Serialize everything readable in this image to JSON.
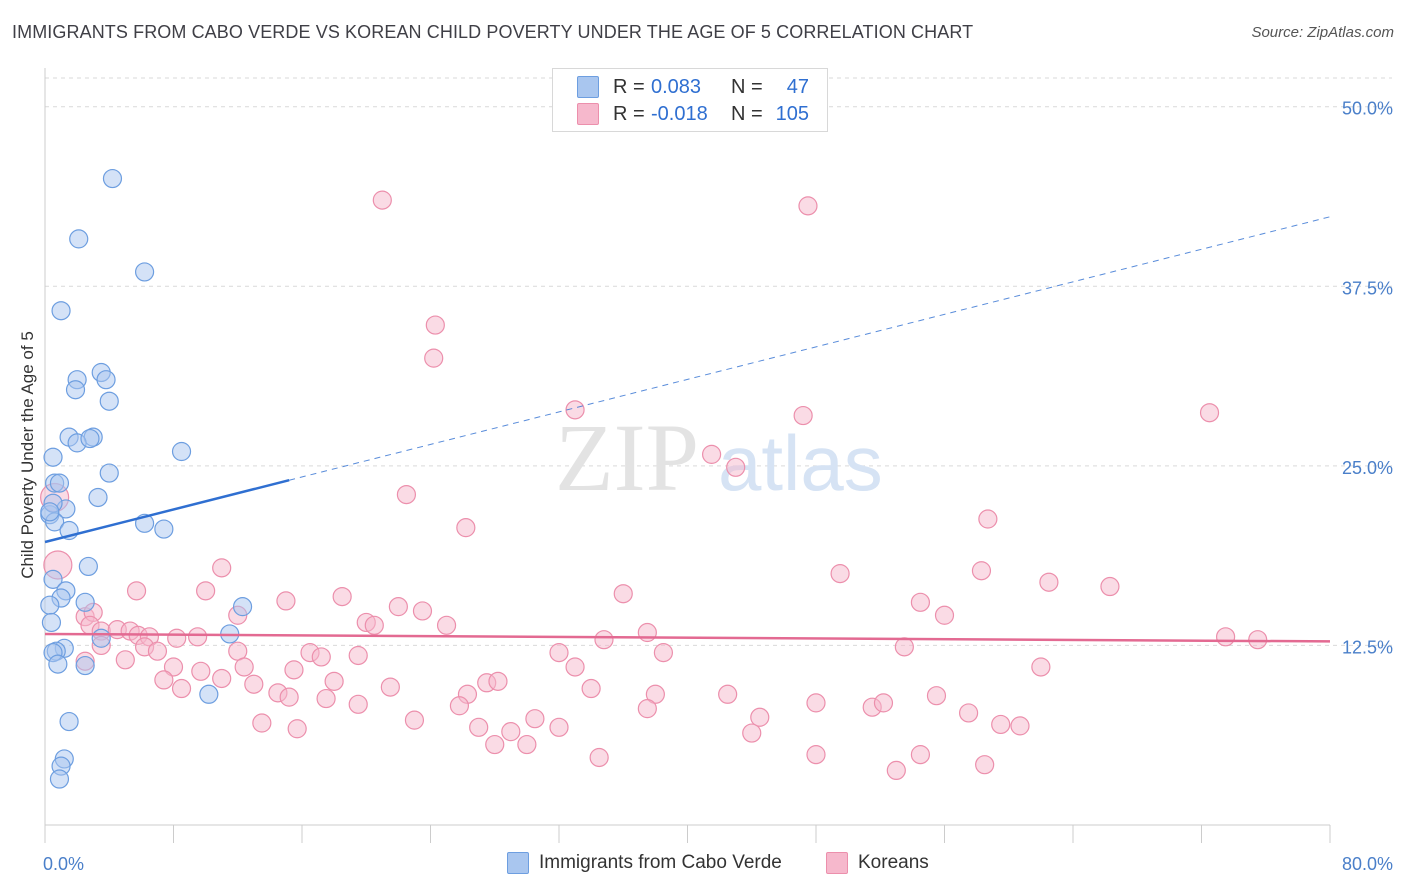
{
  "header": {
    "title": "IMMIGRANTS FROM CABO VERDE VS KOREAN CHILD POVERTY UNDER THE AGE OF 5 CORRELATION CHART",
    "source": "Source: ZipAtlas.com"
  },
  "watermark": {
    "zip": "ZIP",
    "atlas": "atlas"
  },
  "legend": {
    "blue": {
      "r_label": "R =",
      "r_value": "0.083",
      "n_label": "N =",
      "n_value": "47"
    },
    "pink": {
      "r_label": "R =",
      "r_value": "-0.018",
      "n_label": "N =",
      "n_value": "105"
    }
  },
  "colors": {
    "blue_fill": "#a9c6ef",
    "blue_stroke": "#6d9ee0",
    "blue_line": "#2f6fd1",
    "pink_fill": "#f6b8cc",
    "pink_stroke": "#ec8fac",
    "pink_line": "#e36a92",
    "tick_text": "#4a7fc9",
    "grid": "#d9d9d9"
  },
  "chart_data": {
    "type": "scatter",
    "title": "IMMIGRANTS FROM CABO VERDE VS KOREAN CHILD POVERTY UNDER THE AGE OF 5 CORRELATION CHART",
    "xlabel": "",
    "ylabel": "Child Poverty Under the Age of 5",
    "xlim": [
      0,
      80
    ],
    "ylim": [
      0,
      52
    ],
    "x_tick_labels": [
      {
        "value": 0,
        "label": "0.0%"
      },
      {
        "value": 80,
        "label": "80.0%"
      }
    ],
    "y_tick_labels": [
      {
        "value": 12.5,
        "label": "12.5%"
      },
      {
        "value": 25,
        "label": "25.0%"
      },
      {
        "value": 37.5,
        "label": "37.5%"
      },
      {
        "value": 50,
        "label": "50.0%"
      }
    ],
    "legend_position": "top-center",
    "series": [
      {
        "name": "Immigrants from Cabo Verde",
        "color": "#a9c6ef",
        "points": [
          [
            4.2,
            45.0
          ],
          [
            2.1,
            40.8
          ],
          [
            6.2,
            38.5
          ],
          [
            1.0,
            35.8
          ],
          [
            3.5,
            31.5
          ],
          [
            2.0,
            31.0
          ],
          [
            3.8,
            31.0
          ],
          [
            1.9,
            30.3
          ],
          [
            4.0,
            29.5
          ],
          [
            1.5,
            27.0
          ],
          [
            3.0,
            27.0
          ],
          [
            2.0,
            26.6
          ],
          [
            2.8,
            26.9
          ],
          [
            8.5,
            26.0
          ],
          [
            0.5,
            25.6
          ],
          [
            4.0,
            24.5
          ],
          [
            0.6,
            23.8
          ],
          [
            0.9,
            23.8
          ],
          [
            3.3,
            22.8
          ],
          [
            1.3,
            22.0
          ],
          [
            0.3,
            21.6
          ],
          [
            0.6,
            21.1
          ],
          [
            6.2,
            21.0
          ],
          [
            1.5,
            20.5
          ],
          [
            7.4,
            20.6
          ],
          [
            2.7,
            18.0
          ],
          [
            0.5,
            17.1
          ],
          [
            1.3,
            16.3
          ],
          [
            1.0,
            15.8
          ],
          [
            2.5,
            15.5
          ],
          [
            0.3,
            15.3
          ],
          [
            12.3,
            15.2
          ],
          [
            0.4,
            14.1
          ],
          [
            3.5,
            13.0
          ],
          [
            11.5,
            13.3
          ],
          [
            1.2,
            12.3
          ],
          [
            0.7,
            12.1
          ],
          [
            0.5,
            12.0
          ],
          [
            0.8,
            11.2
          ],
          [
            2.5,
            11.1
          ],
          [
            10.2,
            9.1
          ],
          [
            1.5,
            7.2
          ],
          [
            1.2,
            4.6
          ],
          [
            1.0,
            4.1
          ],
          [
            0.9,
            3.2
          ],
          [
            0.5,
            22.4
          ],
          [
            0.3,
            21.8
          ]
        ]
      },
      {
        "name": "Koreans",
        "color": "#f6b8cc",
        "points": [
          [
            21.0,
            43.5
          ],
          [
            47.5,
            43.1
          ],
          [
            24.3,
            34.8
          ],
          [
            24.2,
            32.5
          ],
          [
            33.0,
            28.9
          ],
          [
            47.2,
            28.5
          ],
          [
            72.5,
            28.7
          ],
          [
            41.5,
            25.8
          ],
          [
            43.0,
            24.9
          ],
          [
            22.5,
            23.0
          ],
          [
            26.2,
            20.7
          ],
          [
            58.7,
            21.3
          ],
          [
            0.6,
            22.8
          ],
          [
            0.8,
            18.1
          ],
          [
            11.0,
            17.9
          ],
          [
            49.5,
            17.5
          ],
          [
            58.3,
            17.7
          ],
          [
            62.5,
            16.9
          ],
          [
            66.3,
            16.6
          ],
          [
            5.7,
            16.3
          ],
          [
            10.0,
            16.3
          ],
          [
            18.5,
            15.9
          ],
          [
            36.0,
            16.1
          ],
          [
            15.0,
            15.6
          ],
          [
            54.5,
            15.5
          ],
          [
            22.0,
            15.2
          ],
          [
            23.5,
            14.9
          ],
          [
            2.5,
            14.5
          ],
          [
            3.0,
            14.8
          ],
          [
            12.0,
            14.6
          ],
          [
            56.0,
            14.6
          ],
          [
            2.8,
            13.9
          ],
          [
            20.0,
            14.1
          ],
          [
            20.5,
            13.9
          ],
          [
            25.0,
            13.9
          ],
          [
            3.5,
            13.5
          ],
          [
            4.5,
            13.6
          ],
          [
            5.3,
            13.5
          ],
          [
            5.8,
            13.2
          ],
          [
            6.5,
            13.1
          ],
          [
            8.2,
            13.0
          ],
          [
            9.5,
            13.1
          ],
          [
            37.5,
            13.4
          ],
          [
            34.8,
            12.9
          ],
          [
            3.5,
            12.5
          ],
          [
            6.2,
            12.4
          ],
          [
            12.0,
            12.1
          ],
          [
            7.0,
            12.1
          ],
          [
            16.5,
            12.0
          ],
          [
            17.2,
            11.7
          ],
          [
            19.5,
            11.8
          ],
          [
            32.0,
            12.0
          ],
          [
            38.5,
            12.0
          ],
          [
            53.5,
            12.4
          ],
          [
            73.5,
            13.1
          ],
          [
            75.5,
            12.9
          ],
          [
            2.5,
            11.4
          ],
          [
            5.0,
            11.5
          ],
          [
            8.0,
            11.0
          ],
          [
            9.7,
            10.7
          ],
          [
            15.5,
            10.8
          ],
          [
            12.4,
            11.0
          ],
          [
            33.0,
            11.0
          ],
          [
            62.0,
            11.0
          ],
          [
            7.4,
            10.1
          ],
          [
            11.0,
            10.2
          ],
          [
            18.0,
            10.0
          ],
          [
            13.0,
            9.8
          ],
          [
            21.5,
            9.6
          ],
          [
            34.0,
            9.5
          ],
          [
            8.5,
            9.5
          ],
          [
            14.5,
            9.2
          ],
          [
            15.2,
            8.9
          ],
          [
            27.5,
            9.9
          ],
          [
            28.2,
            10.0
          ],
          [
            38.0,
            9.1
          ],
          [
            42.5,
            9.1
          ],
          [
            55.5,
            9.0
          ],
          [
            17.5,
            8.8
          ],
          [
            19.5,
            8.4
          ],
          [
            26.3,
            9.1
          ],
          [
            25.8,
            8.3
          ],
          [
            37.5,
            8.1
          ],
          [
            48.0,
            8.5
          ],
          [
            51.5,
            8.2
          ],
          [
            52.2,
            8.5
          ],
          [
            57.5,
            7.8
          ],
          [
            44.5,
            7.5
          ],
          [
            13.5,
            7.1
          ],
          [
            15.7,
            6.7
          ],
          [
            23.0,
            7.3
          ],
          [
            27.0,
            6.8
          ],
          [
            29.0,
            6.5
          ],
          [
            30.5,
            7.4
          ],
          [
            32.0,
            6.8
          ],
          [
            44.0,
            6.4
          ],
          [
            59.5,
            7.0
          ],
          [
            60.7,
            6.9
          ],
          [
            28.0,
            5.6
          ],
          [
            30.0,
            5.6
          ],
          [
            34.5,
            4.7
          ],
          [
            48.0,
            4.9
          ],
          [
            53.0,
            3.8
          ],
          [
            54.5,
            4.9
          ],
          [
            58.5,
            4.2
          ]
        ]
      }
    ],
    "trend_lines": [
      {
        "series": "Immigrants from Cabo Verde",
        "solid_x": [
          0,
          15.2
        ],
        "dashed_x": [
          15.2,
          80
        ],
        "intercept": 19.7,
        "slope": 0.283
      },
      {
        "series": "Koreans",
        "solid_x": [
          0,
          80
        ],
        "intercept": 13.3,
        "slope": -0.0065
      }
    ]
  },
  "bottom_legend": {
    "blue_label": "Immigrants from Cabo Verde",
    "pink_label": "Koreans"
  }
}
